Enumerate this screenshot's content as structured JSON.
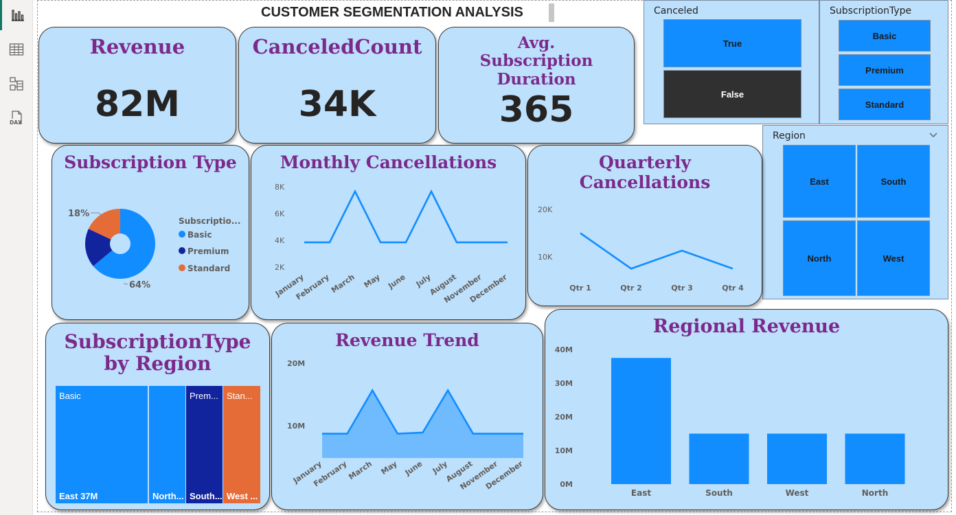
{
  "sidebar": {
    "items": [
      {
        "name": "report-view",
        "icon": "bar-chart-icon",
        "active": true
      },
      {
        "name": "table-view",
        "icon": "table-grid-icon"
      },
      {
        "name": "model-view",
        "icon": "model-icon"
      },
      {
        "name": "dax-query-view",
        "icon": "dax-icon",
        "label": "DAX"
      }
    ]
  },
  "page": {
    "title": "CUSTOMER SEGMENTATION ANALYSIS"
  },
  "kpis": [
    {
      "label": "Revenue",
      "value": "82M"
    },
    {
      "label": "CanceledCount",
      "value": "34K"
    },
    {
      "label": "Avg. Subscription Duration",
      "value": "365"
    }
  ],
  "slicers": {
    "canceled": {
      "title": "Canceled",
      "options": [
        "True",
        "False"
      ],
      "selected": "False"
    },
    "subscription_type": {
      "title": "SubscriptionType",
      "options": [
        "Basic",
        "Premium",
        "Standard"
      ]
    },
    "region": {
      "title": "Region",
      "options": [
        "East",
        "South",
        "North",
        "West"
      ]
    }
  },
  "colors": {
    "card_bg": "#bde0fc",
    "title_purple": "#7b2a8c",
    "accent_blue": "#118dff",
    "navy": "#12239e",
    "orange": "#e66c37",
    "dark_tile": "#303030"
  },
  "charts": {
    "subscription_type": {
      "title": "Subscription Type",
      "legend_title": "Subscriptio...",
      "chart_data": {
        "type": "pie",
        "categories": [
          "Basic",
          "Premium",
          "Standard"
        ],
        "values": [
          64,
          18,
          18
        ],
        "data_labels": [
          "64%",
          "",
          "18%"
        ],
        "colors": [
          "#118dff",
          "#12239e",
          "#e66c37"
        ],
        "legend": "right"
      }
    },
    "monthly_cancellations": {
      "title": "Monthly Cancellations",
      "chart_data": {
        "type": "line",
        "x": [
          "January",
          "February",
          "March",
          "May",
          "June",
          "July",
          "August",
          "November",
          "December"
        ],
        "values": [
          3800,
          3800,
          7600,
          3800,
          3800,
          7600,
          3800,
          3800,
          3800
        ],
        "y_ticks": [
          "2K",
          "4K",
          "6K",
          "8K"
        ],
        "ylim": [
          2000,
          8000
        ]
      }
    },
    "quarterly_cancellations": {
      "title": "Quarterly Cancellations",
      "chart_data": {
        "type": "line",
        "x": [
          "Qtr 1",
          "Qtr 2",
          "Qtr 3",
          "Qtr 4"
        ],
        "values": [
          15000,
          7500,
          11300,
          7500
        ],
        "y_ticks": [
          "10K",
          "20K"
        ],
        "ylim": [
          0,
          20000
        ]
      }
    },
    "subscription_by_region": {
      "title": "SubscriptionType by Region",
      "chart_data": {
        "type": "treemap",
        "cells": [
          {
            "group": "Basic",
            "label": "East 37M",
            "value": 37
          },
          {
            "group": "",
            "label": "North...",
            "value": 15
          },
          {
            "group": "Prem...",
            "label": "South...",
            "value": 15
          },
          {
            "group": "Stan...",
            "label": "West ...",
            "value": 15
          }
        ]
      }
    },
    "revenue_trend": {
      "title": "Revenue Trend",
      "chart_data": {
        "type": "area",
        "x": [
          "January",
          "February",
          "March",
          "May",
          "June",
          "July",
          "August",
          "November",
          "December"
        ],
        "values": [
          7000000,
          7000000,
          15000000,
          7000000,
          7200000,
          15000000,
          7000000,
          7000000,
          7000000
        ],
        "y_ticks": [
          "10M",
          "20M"
        ],
        "ylim": [
          2500000,
          20000000
        ]
      }
    },
    "regional_revenue": {
      "title": "Regional Revenue",
      "chart_data": {
        "type": "bar",
        "categories": [
          "East",
          "South",
          "West",
          "North"
        ],
        "values": [
          37500000,
          15000000,
          15000000,
          15000000
        ],
        "y_ticks": [
          "0M",
          "10M",
          "20M",
          "30M",
          "40M"
        ],
        "ylim": [
          0,
          40000000
        ]
      }
    }
  }
}
